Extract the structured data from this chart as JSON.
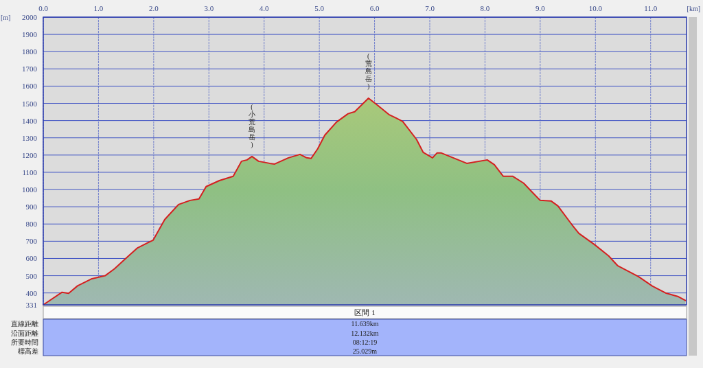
{
  "chart_data": {
    "type": "area",
    "xlabel": "[km]",
    "ylabel": "[m]",
    "xlim": [
      0,
      11.65
    ],
    "ylim": [
      331,
      2000
    ],
    "xticks": [
      {
        "value": 0,
        "label": "0.0"
      },
      {
        "value": 1,
        "label": "1.0"
      },
      {
        "value": 2,
        "label": "2.0"
      },
      {
        "value": 3,
        "label": "3.0"
      },
      {
        "value": 4,
        "label": "4.0"
      },
      {
        "value": 5,
        "label": "5.0"
      },
      {
        "value": 6,
        "label": "6.0"
      },
      {
        "value": 7,
        "label": "7.0"
      },
      {
        "value": 8,
        "label": "8.0"
      },
      {
        "value": 9,
        "label": "9.0"
      },
      {
        "value": 10,
        "label": "10.0"
      },
      {
        "value": 11,
        "label": "11.0"
      }
    ],
    "yticks": [
      331,
      400,
      500,
      600,
      700,
      800,
      900,
      1000,
      1100,
      1200,
      1300,
      1400,
      1500,
      1600,
      1700,
      1800,
      1900,
      2000
    ],
    "grid": true,
    "marker": "none",
    "line_style": "solid",
    "x": [
      0,
      0.34,
      0.46,
      0.62,
      0.87,
      1.12,
      1.29,
      1.49,
      1.7,
      1.91,
      1.99,
      2.2,
      2.45,
      2.66,
      2.82,
      2.95,
      3.19,
      3.44,
      3.59,
      3.69,
      3.78,
      3.9,
      4.1,
      4.19,
      4.44,
      4.65,
      4.77,
      4.85,
      4.97,
      5.1,
      5.31,
      5.52,
      5.64,
      5.89,
      6.05,
      6.26,
      6.39,
      6.51,
      6.76,
      6.88,
      7.05,
      7.13,
      7.21,
      7.67,
      8.04,
      8.17,
      8.33,
      8.5,
      8.7,
      8.83,
      9,
      9.2,
      9.32,
      9.57,
      9.7,
      9.99,
      10.24,
      10.4,
      10.78,
      11.03,
      11.27,
      11.49,
      11.63
    ],
    "series": [
      {
        "color": "#d42020",
        "values": [
          331,
          404,
          398,
          441,
          481,
          500,
          540,
          599,
          660,
          694,
          706,
          826,
          913,
          937,
          945,
          1017,
          1052,
          1077,
          1164,
          1172,
          1192,
          1164,
          1152,
          1148,
          1184,
          1204,
          1184,
          1180,
          1236,
          1316,
          1391,
          1440,
          1451,
          1530,
          1490,
          1435,
          1415,
          1395,
          1291,
          1216,
          1184,
          1212,
          1212,
          1152,
          1172,
          1144,
          1077,
          1077,
          1037,
          993,
          937,
          933,
          905,
          798,
          746,
          679,
          615,
          559,
          495,
          440,
          400,
          380,
          356
        ]
      }
    ],
    "annotations": [
      {
        "text": "(小荒島岳)",
        "x": 3.78,
        "y": 1192
      },
      {
        "text": "(荒島岳)",
        "x": 5.89,
        "y": 1530
      },
      "区間 1",
      "直線距離",
      "11.639km",
      "沿面距離",
      "12.132km",
      "所要時間",
      "08:12:19",
      "標高差",
      "25.029m"
    ]
  }
}
